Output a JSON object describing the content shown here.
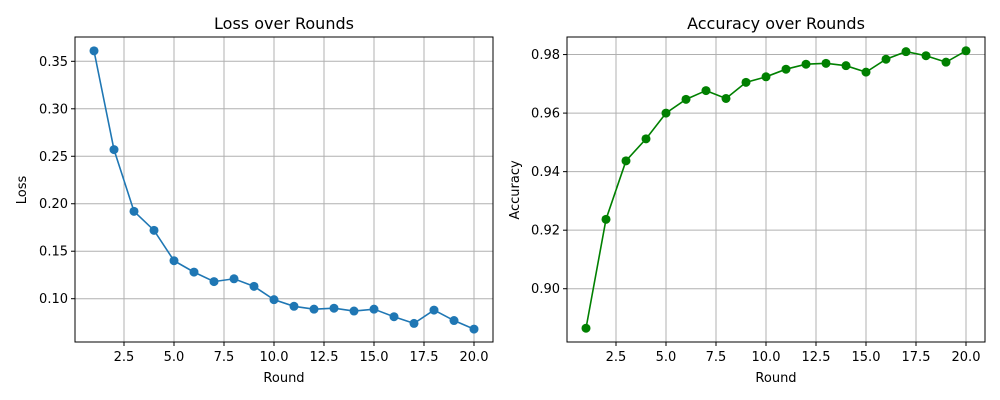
{
  "chart_data": [
    {
      "type": "line",
      "title": "Loss over Rounds",
      "xlabel": "Round",
      "ylabel": "Loss",
      "x": [
        1,
        2,
        3,
        4,
        5,
        6,
        7,
        8,
        9,
        10,
        11,
        12,
        13,
        14,
        15,
        16,
        17,
        18,
        19,
        20
      ],
      "series": [
        {
          "values": [
            0.361,
            0.257,
            0.192,
            0.172,
            0.14,
            0.128,
            0.118,
            0.121,
            0.113,
            0.099,
            0.092,
            0.089,
            0.09,
            0.087,
            0.089,
            0.081,
            0.074,
            0.088,
            0.077,
            0.068
          ]
        }
      ],
      "xlim": [
        0.05,
        20.95
      ],
      "ylim": [
        0.0544,
        0.3756
      ],
      "xticks": [
        2.5,
        5.0,
        7.5,
        10.0,
        12.5,
        15.0,
        17.5,
        20.0
      ],
      "xtick_labels": [
        "2.5",
        "5.0",
        "7.5",
        "10.0",
        "12.5",
        "15.0",
        "17.5",
        "20.0"
      ],
      "yticks": [
        0.1,
        0.15,
        0.2,
        0.25,
        0.3,
        0.35
      ],
      "ytick_labels": [
        "0.10",
        "0.15",
        "0.20",
        "0.25",
        "0.30",
        "0.35"
      ],
      "grid": true,
      "color": "#1f77b4"
    },
    {
      "type": "line",
      "title": "Accuracy over Rounds",
      "xlabel": "Round",
      "ylabel": "Accuracy",
      "x": [
        1,
        2,
        3,
        4,
        5,
        6,
        7,
        8,
        9,
        10,
        11,
        12,
        13,
        14,
        15,
        16,
        17,
        18,
        19,
        20
      ],
      "series": [
        {
          "values": [
            0.8865,
            0.9237,
            0.9437,
            0.9512,
            0.96,
            0.9647,
            0.9677,
            0.965,
            0.9705,
            0.9724,
            0.975,
            0.9767,
            0.977,
            0.9762,
            0.974,
            0.9784,
            0.981,
            0.9796,
            0.9774,
            0.9813
          ]
        }
      ],
      "xlim": [
        0.05,
        20.95
      ],
      "ylim": [
        0.8818,
        0.986
      ],
      "xticks": [
        2.5,
        5.0,
        7.5,
        10.0,
        12.5,
        15.0,
        17.5,
        20.0
      ],
      "xtick_labels": [
        "2.5",
        "5.0",
        "7.5",
        "10.0",
        "12.5",
        "15.0",
        "17.5",
        "20.0"
      ],
      "yticks": [
        0.9,
        0.92,
        0.94,
        0.96,
        0.98
      ],
      "ytick_labels": [
        "0.90",
        "0.92",
        "0.94",
        "0.96",
        "0.98"
      ],
      "grid": true,
      "color": "#008000"
    }
  ]
}
